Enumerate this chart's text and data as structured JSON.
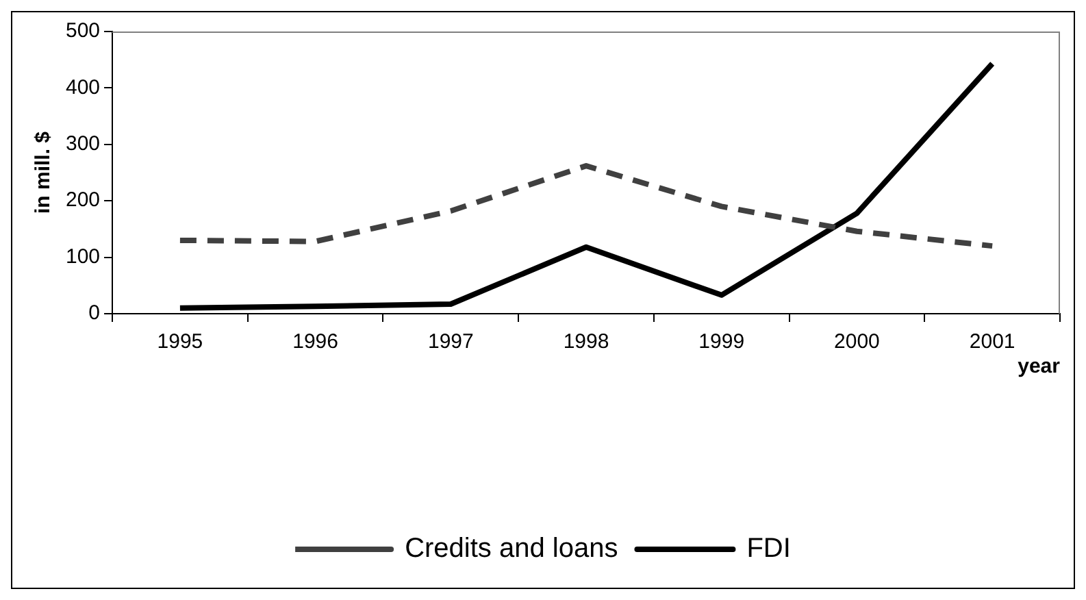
{
  "chart_data": {
    "type": "line",
    "xlabel": "year",
    "ylabel": "in mill. $",
    "categories": [
      "1995",
      "1996",
      "1997",
      "1998",
      "1999",
      "2000",
      "2001"
    ],
    "series": [
      {
        "name": "Credits and loans",
        "color": "#404040",
        "line_style": "dashed",
        "values": [
          130,
          128,
          182,
          262,
          190,
          146,
          120
        ]
      },
      {
        "name": "FDI",
        "color": "#000000",
        "line_style": "solid",
        "values": [
          10,
          13,
          17,
          118,
          33,
          178,
          443
        ]
      }
    ],
    "ylim": [
      0,
      500
    ],
    "yticks": [
      0,
      100,
      200,
      300,
      400,
      500
    ],
    "grid": false,
    "legend": "bottom",
    "marker": "none"
  }
}
